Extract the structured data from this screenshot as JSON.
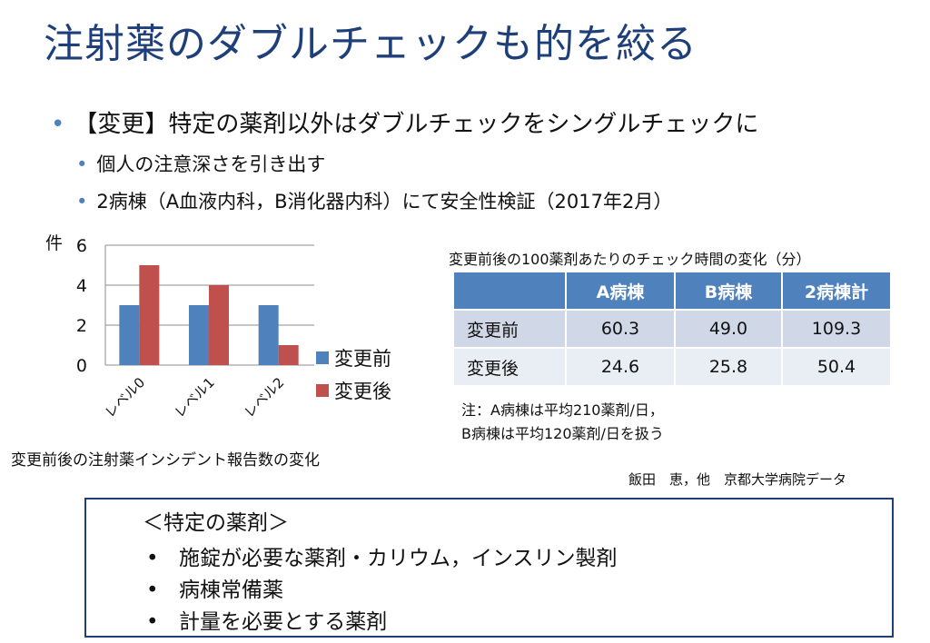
{
  "title": "注射薬のダブルチェックも的を絞る",
  "bullet1": "【変更】特定の薬剤以外はダブルチェックをシングルチェックに",
  "sub_bullets": [
    "個人の注意深さを引き出す",
    "2病棟（A血液内科，B消化器内科）にて安全性検証（2017年2月）"
  ],
  "chart_caption": "変更前後の注射薬インシデント報告数の変化",
  "chart_data": {
    "type": "bar",
    "categories": [
      "レベル0",
      "レベル1",
      "レベル2"
    ],
    "series": [
      {
        "name": "変更前",
        "values": [
          3,
          3,
          3
        ],
        "color": "#4F81BD"
      },
      {
        "name": "変更後",
        "values": [
          5,
          4,
          1
        ],
        "color": "#C0504D"
      }
    ],
    "ylabel": "件",
    "ylim": [
      0,
      6
    ],
    "yticks": [
      0,
      2,
      4,
      6
    ],
    "grid": true,
    "legend": "right"
  },
  "table": {
    "title": "変更前後の100薬剤あたりのチェック時間の変化（分）",
    "headers": [
      "",
      "A病棟",
      "B病棟",
      "2病棟計"
    ],
    "rows": [
      [
        "変更前",
        "60.3",
        "49.0",
        "109.3"
      ],
      [
        "変更後",
        "24.6",
        "25.8",
        "50.4"
      ]
    ]
  },
  "notes": [
    "注：A病棟は平均210薬剤/日，",
    "B病棟は平均120薬剤/日を扱う"
  ],
  "credit": "飯田　恵，他　京都大学病院データ",
  "box": {
    "title": "＜特定の薬剤＞",
    "items": [
      "施錠が必要な薬剤・カリウム，インスリン製剤",
      "病棟常備薬",
      "計量を必要とする薬剤"
    ]
  },
  "bullet_symbol": "•"
}
